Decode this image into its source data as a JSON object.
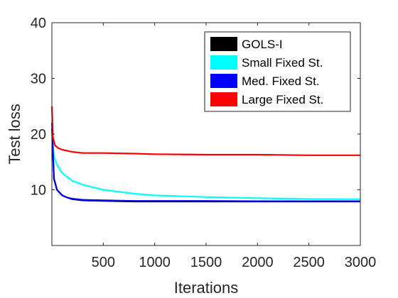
{
  "chart_data": {
    "type": "line",
    "title": "",
    "xlabel": "Iterations",
    "ylabel": "Test loss",
    "xlim": [
      0,
      3000
    ],
    "ylim": [
      0,
      40
    ],
    "xticks": [
      500,
      1000,
      1500,
      2000,
      2500,
      3000
    ],
    "yticks": [
      10,
      20,
      30,
      40
    ],
    "grid": false,
    "legend_position": "top-right",
    "series": [
      {
        "name": "GOLS-I",
        "color": "#000000",
        "x": [
          1,
          20,
          50,
          100,
          150,
          200,
          300,
          500,
          800,
          1000,
          1500,
          2000,
          2500,
          3000
        ],
        "y": [
          21,
          12,
          10,
          9,
          8.6,
          8.3,
          8.1,
          8.0,
          7.9,
          7.9,
          7.9,
          7.9,
          7.9,
          7.9
        ]
      },
      {
        "name": "Small Fixed St.",
        "color": "#00ffff",
        "x": [
          1,
          20,
          50,
          100,
          200,
          300,
          500,
          800,
          1000,
          1500,
          2000,
          2500,
          3000
        ],
        "y": [
          20,
          16,
          14.5,
          13,
          11.6,
          10.9,
          10.0,
          9.3,
          9.0,
          8.7,
          8.5,
          8.35,
          8.3
        ]
      },
      {
        "name": "Med. Fixed St.",
        "color": "#0000ff",
        "x": [
          1,
          20,
          50,
          100,
          150,
          200,
          300,
          500,
          800,
          1000,
          1500,
          2000,
          2500,
          3000
        ],
        "y": [
          22,
          12,
          10,
          9,
          8.6,
          8.4,
          8.2,
          8.1,
          8.0,
          8.0,
          8.0,
          7.95,
          7.95,
          7.95
        ]
      },
      {
        "name": "Large Fixed St.",
        "color": "#ff0000",
        "x": [
          1,
          10,
          30,
          60,
          100,
          200,
          300,
          500,
          800,
          1000,
          1500,
          2000,
          2500,
          3000
        ],
        "y": [
          25,
          19.5,
          18,
          17.5,
          17.2,
          16.8,
          16.6,
          16.6,
          16.5,
          16.4,
          16.3,
          16.3,
          16.2,
          16.2
        ]
      }
    ]
  }
}
